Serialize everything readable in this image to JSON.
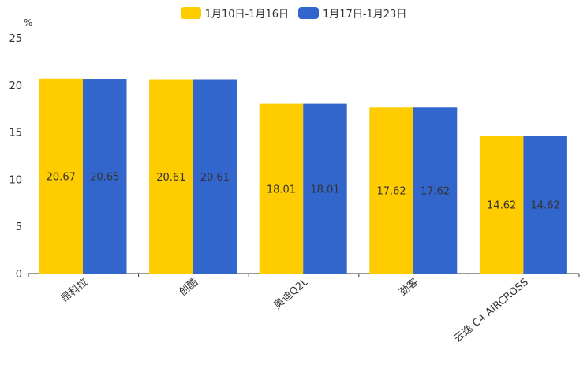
{
  "chart_data": {
    "type": "bar",
    "title": "",
    "xlabel": "",
    "ylabel": "%",
    "ylim": [
      0,
      25
    ],
    "yticks": [
      0,
      5,
      10,
      15,
      20,
      25
    ],
    "grid": false,
    "legend_position": "top-center",
    "categories": [
      "昂科拉",
      "创酷",
      "奥迪Q2L",
      "劲客",
      "云逸 C4 AIRCROSS"
    ],
    "series": [
      {
        "name": "1月10日-1月16日",
        "color": "#ffcc00",
        "values": [
          20.67,
          20.61,
          18.01,
          17.62,
          14.62
        ]
      },
      {
        "name": "1月17日-1月23日",
        "color": "#3366cc",
        "values": [
          20.65,
          20.61,
          18.01,
          17.62,
          14.62
        ]
      }
    ]
  }
}
